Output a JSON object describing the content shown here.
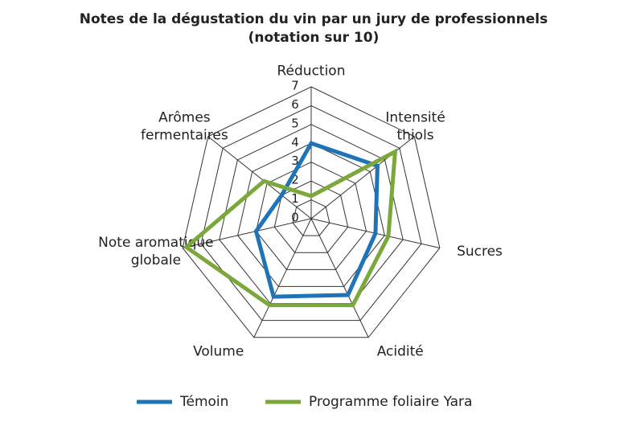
{
  "chart_data": {
    "type": "radar",
    "title": "Notes de la dégustation du vin par un jury de professionnels",
    "subtitle": "(notation sur 10)",
    "categories": [
      "Réduction",
      "Intensité thiols",
      "Sucres",
      "Acidité",
      "Volume",
      "Note aromatique globale",
      "Arômes fermentaires"
    ],
    "series": [
      {
        "name": "Témoin",
        "color": "#1f73b7",
        "values": [
          4,
          4.5,
          3.5,
          4.5,
          4.6,
          3,
          2
        ]
      },
      {
        "name": "Programme foliaire Yara",
        "color": "#7aa83a",
        "values": [
          1.2,
          5.7,
          4.2,
          5.1,
          5.1,
          6.8,
          3.2
        ]
      }
    ],
    "rlim": [
      0,
      7
    ],
    "rticks": [
      0,
      1,
      2,
      3,
      4,
      5,
      6,
      7
    ],
    "grid": true,
    "legend": "bottom"
  }
}
